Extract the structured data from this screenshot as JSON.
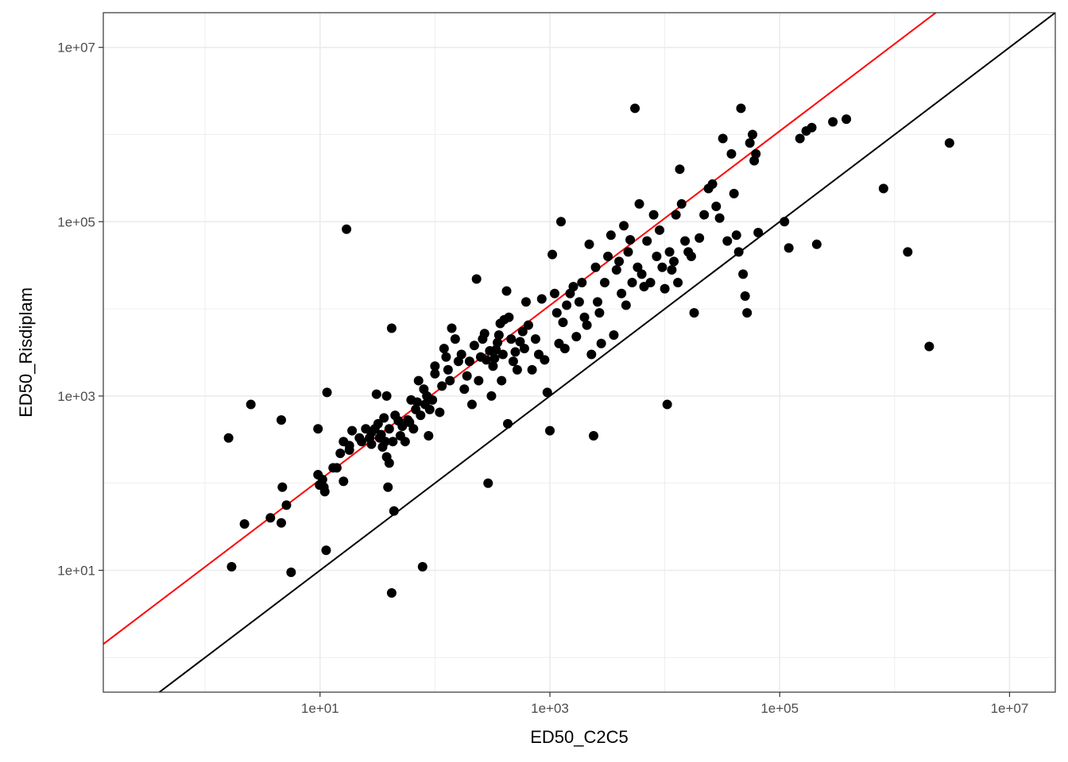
{
  "chart_data": {
    "type": "scatter",
    "title": "",
    "xlabel": "ED50_C2C5",
    "ylabel": "ED50_Risdiplam",
    "x_scale": "log10",
    "y_scale": "log10",
    "xlim": [
      0.13,
      25000000.0
    ],
    "ylim": [
      0.4,
      25000000.0
    ],
    "x_ticks": [
      "1e+01",
      "1e+03",
      "1e+05",
      "1e+07"
    ],
    "y_ticks": [
      "1e+01",
      "1e+03",
      "1e+05",
      "1e+07"
    ],
    "grid": true,
    "colors": {
      "points": "#000000",
      "fit_line": "#ff0000",
      "identity_line": "#000000",
      "grid": "#ebebeb",
      "panel_border": "#333333"
    },
    "lines": [
      {
        "kind": "identity",
        "slope": 1,
        "intercept_log10": 0,
        "color": "#000000"
      },
      {
        "kind": "fit",
        "slope": 1,
        "intercept_log10": 1.04,
        "color": "#ff0000"
      }
    ],
    "points": [
      [
        1.6,
        330
      ],
      [
        1.7,
        11
      ],
      [
        2.5,
        800
      ],
      [
        2.2,
        34
      ],
      [
        4.6,
        530
      ],
      [
        4.7,
        90
      ],
      [
        5.1,
        56
      ],
      [
        3.7,
        40
      ],
      [
        4.6,
        35
      ],
      [
        5.6,
        9.5
      ],
      [
        9.6,
        420
      ],
      [
        9.6,
        125
      ],
      [
        9.9,
        95
      ],
      [
        10.5,
        110
      ],
      [
        10.8,
        90
      ],
      [
        11,
        80
      ],
      [
        11.5,
        1100
      ],
      [
        11.3,
        17
      ],
      [
        17,
        82000
      ],
      [
        13,
        150
      ],
      [
        14,
        150
      ],
      [
        15,
        220
      ],
      [
        16,
        105
      ],
      [
        16,
        300
      ],
      [
        18,
        240
      ],
      [
        18,
        270
      ],
      [
        19,
        400
      ],
      [
        22,
        330
      ],
      [
        23,
        300
      ],
      [
        25,
        420
      ],
      [
        27,
        330
      ],
      [
        28,
        380
      ],
      [
        28,
        280
      ],
      [
        30,
        420
      ],
      [
        31,
        1050
      ],
      [
        32,
        480
      ],
      [
        33,
        330
      ],
      [
        34,
        360
      ],
      [
        35,
        260
      ],
      [
        36,
        560
      ],
      [
        37,
        300
      ],
      [
        38,
        1000
      ],
      [
        38,
        200
      ],
      [
        39,
        90
      ],
      [
        40,
        170
      ],
      [
        40,
        420
      ],
      [
        42,
        5.5
      ],
      [
        42,
        6000
      ],
      [
        43,
        300
      ],
      [
        44,
        48
      ],
      [
        45,
        600
      ],
      [
        48,
        520
      ],
      [
        50,
        350
      ],
      [
        52,
        450
      ],
      [
        55,
        300
      ],
      [
        58,
        530
      ],
      [
        60,
        500
      ],
      [
        62,
        900
      ],
      [
        65,
        420
      ],
      [
        68,
        700
      ],
      [
        70,
        850
      ],
      [
        72,
        1500
      ],
      [
        75,
        600
      ],
      [
        78,
        11
      ],
      [
        80,
        1200
      ],
      [
        82,
        800
      ],
      [
        85,
        1000
      ],
      [
        88,
        350
      ],
      [
        90,
        700
      ],
      [
        95,
        900
      ],
      [
        100,
        2200
      ],
      [
        100,
        1800
      ],
      [
        110,
        650
      ],
      [
        115,
        1300
      ],
      [
        120,
        3500
      ],
      [
        125,
        2800
      ],
      [
        130,
        2000
      ],
      [
        135,
        1500
      ],
      [
        140,
        6000
      ],
      [
        150,
        4500
      ],
      [
        160,
        2500
      ],
      [
        170,
        3000
      ],
      [
        180,
        1200
      ],
      [
        190,
        1700
      ],
      [
        200,
        2500
      ],
      [
        210,
        800
      ],
      [
        220,
        3800
      ],
      [
        230,
        22000
      ],
      [
        240,
        1500
      ],
      [
        250,
        2800
      ],
      [
        260,
        4500
      ],
      [
        270,
        5200
      ],
      [
        280,
        2600
      ],
      [
        290,
        100
      ],
      [
        300,
        3300
      ],
      [
        310,
        1000
      ],
      [
        320,
        2200
      ],
      [
        330,
        2700
      ],
      [
        340,
        3400
      ],
      [
        350,
        4100
      ],
      [
        360,
        5000
      ],
      [
        370,
        6800
      ],
      [
        380,
        1500
      ],
      [
        390,
        3000
      ],
      [
        400,
        7500
      ],
      [
        420,
        16000
      ],
      [
        430,
        480
      ],
      [
        440,
        8000
      ],
      [
        460,
        4500
      ],
      [
        480,
        2500
      ],
      [
        500,
        3200
      ],
      [
        520,
        2000
      ],
      [
        550,
        4200
      ],
      [
        580,
        5500
      ],
      [
        600,
        3500
      ],
      [
        620,
        12000
      ],
      [
        650,
        6500
      ],
      [
        700,
        2000
      ],
      [
        750,
        4500
      ],
      [
        800,
        3000
      ],
      [
        850,
        13000
      ],
      [
        900,
        2600
      ],
      [
        950,
        1100
      ],
      [
        1000,
        400
      ],
      [
        1050,
        42000
      ],
      [
        1100,
        15000
      ],
      [
        1150,
        9000
      ],
      [
        1200,
        4000
      ],
      [
        1250,
        100000
      ],
      [
        1300,
        7000
      ],
      [
        1350,
        3500
      ],
      [
        1400,
        11000
      ],
      [
        1500,
        15000
      ],
      [
        1600,
        18000
      ],
      [
        1700,
        4800
      ],
      [
        1800,
        12000
      ],
      [
        1900,
        20000
      ],
      [
        2000,
        8000
      ],
      [
        2100,
        6500
      ],
      [
        2200,
        55000
      ],
      [
        2300,
        3000
      ],
      [
        2400,
        350
      ],
      [
        2500,
        30000
      ],
      [
        2600,
        12000
      ],
      [
        2700,
        9000
      ],
      [
        2800,
        4000
      ],
      [
        3000,
        20000
      ],
      [
        3200,
        40000
      ],
      [
        3400,
        70000
      ],
      [
        3600,
        5000
      ],
      [
        3800,
        28000
      ],
      [
        4000,
        35000
      ],
      [
        4200,
        15000
      ],
      [
        4400,
        90000
      ],
      [
        4600,
        11000
      ],
      [
        4800,
        45000
      ],
      [
        5000,
        62000
      ],
      [
        5200,
        20000
      ],
      [
        5500,
        2000000
      ],
      [
        5800,
        30000
      ],
      [
        6000,
        160000
      ],
      [
        6300,
        25000
      ],
      [
        6600,
        18000
      ],
      [
        7000,
        60000
      ],
      [
        7500,
        20000
      ],
      [
        8000,
        120000
      ],
      [
        8500,
        40000
      ],
      [
        9000,
        80000
      ],
      [
        9500,
        30000
      ],
      [
        10000,
        17000
      ],
      [
        10500,
        800
      ],
      [
        11000,
        45000
      ],
      [
        11500,
        28000
      ],
      [
        12000,
        35000
      ],
      [
        12500,
        120000
      ],
      [
        13000,
        20000
      ],
      [
        13500,
        400000
      ],
      [
        14000,
        160000
      ],
      [
        15000,
        60000
      ],
      [
        16000,
        45000
      ],
      [
        17000,
        40000
      ],
      [
        18000,
        9000
      ],
      [
        20000,
        65000
      ],
      [
        22000,
        120000
      ],
      [
        24000,
        240000
      ],
      [
        26000,
        270000
      ],
      [
        28000,
        150000
      ],
      [
        30000,
        110000
      ],
      [
        32000,
        900000
      ],
      [
        35000,
        60000
      ],
      [
        38000,
        600000
      ],
      [
        40000,
        210000
      ],
      [
        42000,
        70000
      ],
      [
        44000,
        45000
      ],
      [
        46000,
        2000000
      ],
      [
        48000,
        25000
      ],
      [
        50000,
        14000
      ],
      [
        52000,
        9000
      ],
      [
        55000,
        800000
      ],
      [
        58000,
        1000000
      ],
      [
        60000,
        500000
      ],
      [
        62000,
        600000
      ],
      [
        65000,
        75000
      ],
      [
        110000,
        100000
      ],
      [
        120000,
        50000
      ],
      [
        150000,
        900000
      ],
      [
        170000,
        1100000
      ],
      [
        190000,
        1200000
      ],
      [
        210000,
        55000
      ],
      [
        290000,
        1400000
      ],
      [
        380000,
        1500000
      ],
      [
        800000,
        240000
      ],
      [
        1300000,
        45000
      ],
      [
        2000000,
        3700
      ],
      [
        3000000,
        800000
      ]
    ]
  }
}
